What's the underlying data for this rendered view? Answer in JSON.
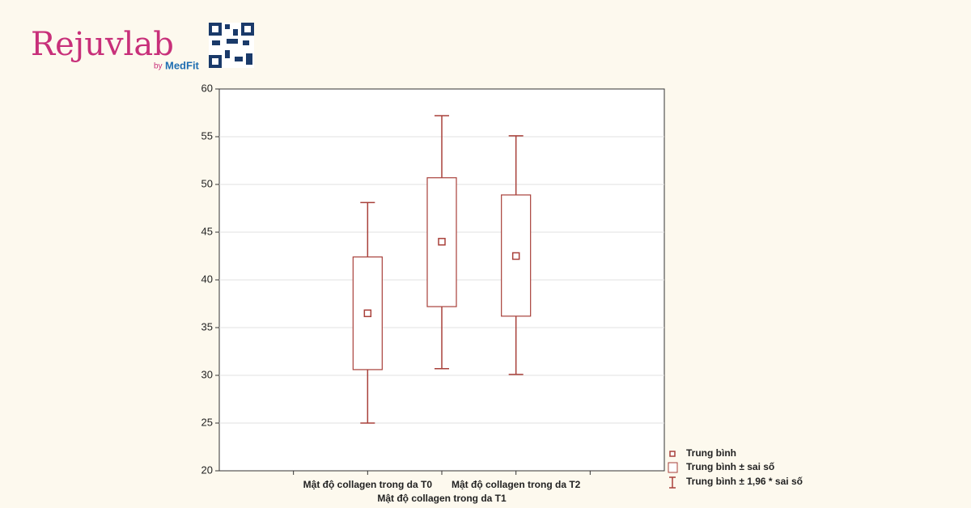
{
  "logo": {
    "name": "Rejuvlab",
    "by": "by",
    "brand": "MedFit"
  },
  "chart_data": {
    "type": "box",
    "categories": [
      null,
      "Mật độ collagen trong da T0",
      "Mật độ collagen trong da T1",
      "Mật độ collagen trong da T2",
      null
    ],
    "mean": [
      null,
      36.5,
      44.0,
      42.5,
      null
    ],
    "box_low": [
      null,
      30.6,
      37.2,
      36.2,
      null
    ],
    "box_high": [
      null,
      42.4,
      50.7,
      48.9,
      null
    ],
    "whisker_low": [
      null,
      25.0,
      30.7,
      30.1,
      null
    ],
    "whisker_high": [
      null,
      48.1,
      57.2,
      55.1,
      null
    ],
    "color": "#a8403a",
    "ylim": [
      20,
      60
    ],
    "yticks": [
      20,
      25,
      30,
      35,
      40,
      45,
      50,
      55,
      60
    ],
    "grid": true,
    "legend": [
      "Trung bình",
      "Trung bình ± sai số",
      "Trung bình ± 1,96 * sai số"
    ]
  }
}
